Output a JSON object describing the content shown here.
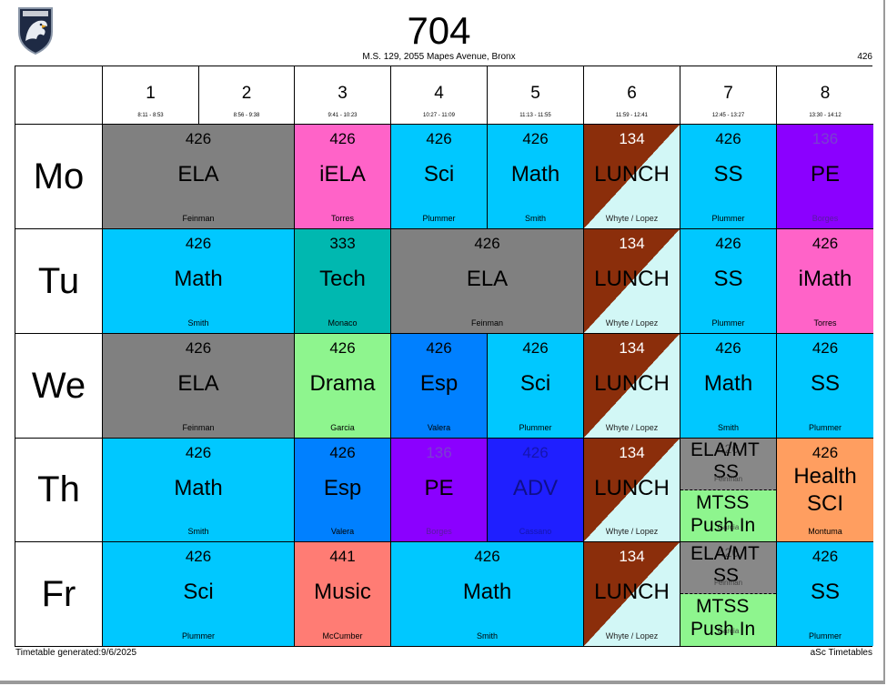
{
  "header": {
    "class_name": "704",
    "school": "M.S. 129, 2055 Mapes Avenue, Bronx",
    "room_code": "426"
  },
  "footer": {
    "generated": "Timetable generated:9/6/2025",
    "app": "aSc Timetables"
  },
  "periods": [
    {
      "num": "1",
      "time": "8:11 - 8:53"
    },
    {
      "num": "2",
      "time": "8:56 - 9:38"
    },
    {
      "num": "3",
      "time": "9:41 - 10:23"
    },
    {
      "num": "4",
      "time": "10:27 - 11:09"
    },
    {
      "num": "5",
      "time": "11:13 - 11:55"
    },
    {
      "num": "6",
      "time": "11:59 - 12:41"
    },
    {
      "num": "7",
      "time": "12:45 - 13:27"
    },
    {
      "num": "8",
      "time": "13:30 - 14:12"
    }
  ],
  "days": [
    "Mo",
    "Tu",
    "We",
    "Th",
    "Fr"
  ],
  "colors": {
    "ela": "#808080",
    "iela": "#ff63c8",
    "cyan": "#00c8ff",
    "purple": "#8b00ff",
    "pink": "#ff63c8",
    "teal": "#00b8b0",
    "green": "#8ef58e",
    "blue": "#0080ff",
    "navy": "#1f1fff",
    "orange": "#ff9e60",
    "salmon": "#ff7c74",
    "lunch_dark": "#8b2e0b",
    "lunch_light": "#d2f7f6"
  },
  "cells": {
    "mo_ela": {
      "room": "426",
      "subject": "ELA",
      "teacher": "Feinman"
    },
    "mo_iela": {
      "room": "426",
      "subject": "iELA",
      "teacher": "Torres"
    },
    "mo_sci": {
      "room": "426",
      "subject": "Sci",
      "teacher": "Plummer"
    },
    "mo_math": {
      "room": "426",
      "subject": "Math",
      "teacher": "Smith"
    },
    "mo_lunch": {
      "room": "134",
      "subject": "LUNCH",
      "teacher": "Whyte / Lopez"
    },
    "mo_ss": {
      "room": "426",
      "subject": "SS",
      "teacher": "Plummer"
    },
    "mo_pe": {
      "room": "136",
      "subject": "PE",
      "teacher": "Borges"
    },
    "tu_math": {
      "room": "426",
      "subject": "Math",
      "teacher": "Smith"
    },
    "tu_tech": {
      "room": "333",
      "subject": "Tech",
      "teacher": "Monaco"
    },
    "tu_ela": {
      "room": "426",
      "subject": "ELA",
      "teacher": "Feinman"
    },
    "tu_lunch": {
      "room": "134",
      "subject": "LUNCH",
      "teacher": "Whyte / Lopez"
    },
    "tu_ss": {
      "room": "426",
      "subject": "SS",
      "teacher": "Plummer"
    },
    "tu_imath": {
      "room": "426",
      "subject": "iMath",
      "teacher": "Torres"
    },
    "we_ela": {
      "room": "426",
      "subject": "ELA",
      "teacher": "Feinman"
    },
    "we_drama": {
      "room": "426",
      "subject": "Drama",
      "teacher": "Garcia"
    },
    "we_esp": {
      "room": "426",
      "subject": "Esp",
      "teacher": "Valera"
    },
    "we_sci": {
      "room": "426",
      "subject": "Sci",
      "teacher": "Plummer"
    },
    "we_lunch": {
      "room": "134",
      "subject": "LUNCH",
      "teacher": "Whyte / Lopez"
    },
    "we_math": {
      "room": "426",
      "subject": "Math",
      "teacher": "Smith"
    },
    "we_ss": {
      "room": "426",
      "subject": "SS",
      "teacher": "Plummer"
    },
    "th_math": {
      "room": "426",
      "subject": "Math",
      "teacher": "Smith"
    },
    "th_esp": {
      "room": "426",
      "subject": "Esp",
      "teacher": "Valera"
    },
    "th_pe": {
      "room": "136",
      "subject": "PE",
      "teacher": "Borges"
    },
    "th_adv": {
      "room": "426",
      "subject": "ADV",
      "teacher": "Cassano"
    },
    "th_lunch": {
      "room": "134",
      "subject": "LUNCH",
      "teacher": "Whyte / Lopez"
    },
    "th_split": {
      "top_line1": "ELA/MT",
      "top_line2": "SS",
      "top_room": "426",
      "top_teacher": "Feinman",
      "bottom_line1": "MTSS",
      "bottom_line2": "Push In",
      "bottom_teacher": "Garcia"
    },
    "th_health": {
      "room": "426",
      "subject": "Health",
      "subject2": "SCI",
      "teacher": "Montuma"
    },
    "fr_sci": {
      "room": "426",
      "subject": "Sci",
      "teacher": "Plummer"
    },
    "fr_music": {
      "room": "441",
      "subject": "Music",
      "teacher": "McCumber"
    },
    "fr_math": {
      "room": "426",
      "subject": "Math",
      "teacher": "Smith"
    },
    "fr_lunch": {
      "room": "134",
      "subject": "LUNCH",
      "teacher": "Whyte / Lopez"
    },
    "fr_split": {
      "top_line1": "ELA/MT",
      "top_line2": "SS",
      "top_room": "426",
      "top_teacher": "Feinman",
      "bottom_line1": "MTSS",
      "bottom_line2": "Push In",
      "bottom_teacher": "Garcia"
    },
    "fr_ss": {
      "room": "426",
      "subject": "SS",
      "teacher": "Plummer"
    }
  }
}
